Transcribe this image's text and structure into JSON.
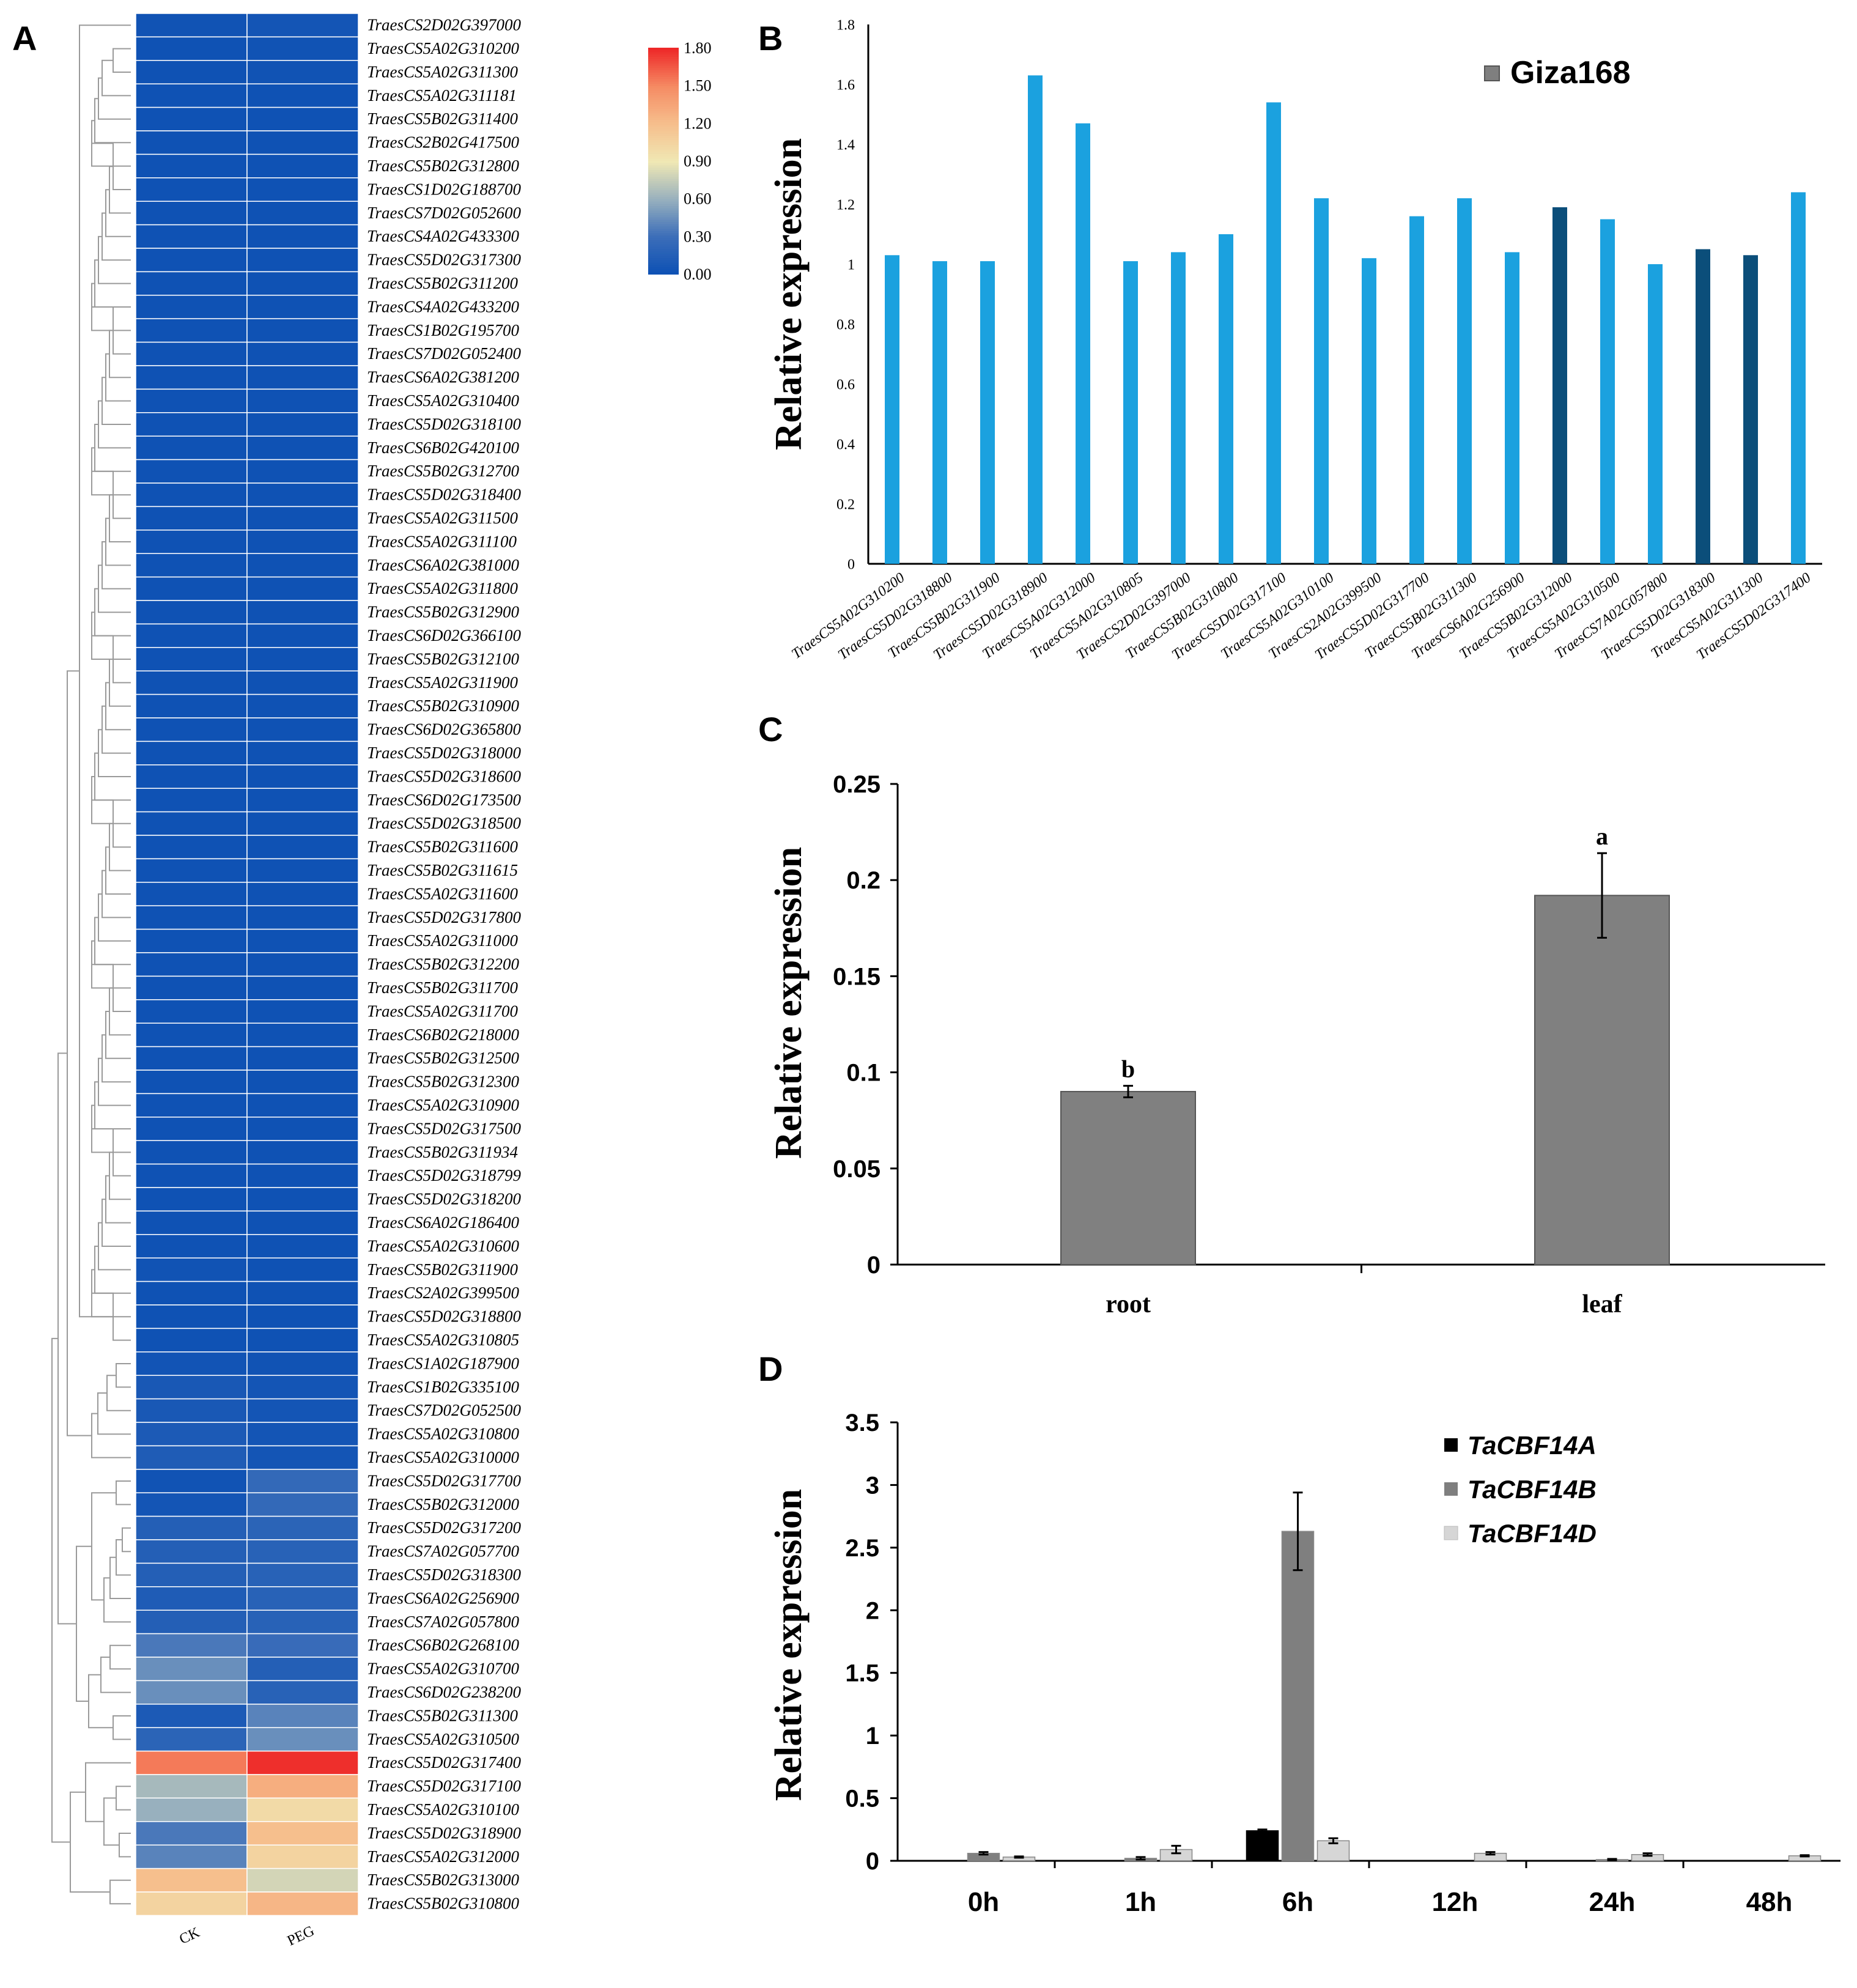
{
  "panels": {
    "a": {
      "letter": "A"
    },
    "b": {
      "letter": "B"
    },
    "c": {
      "letter": "C"
    },
    "d": {
      "letter": "D"
    }
  },
  "colors": {
    "axis": "#000000",
    "b_light": "#1ba1df",
    "b_dark": "#0b4e7a",
    "b_legend": "#7f7f7f",
    "c_bar": "#808080",
    "d_a": "#000000",
    "d_b": "#7f7f7f",
    "d_d": "#d6d6d6"
  },
  "chart_data": [
    {
      "panel": "A",
      "type": "heatmap",
      "columns": [
        "CK",
        "PEG"
      ],
      "colorbar": {
        "min": 0.0,
        "max": 1.8,
        "ticks": [
          "0.00",
          "0.30",
          "0.60",
          "0.90",
          "1.20",
          "1.50",
          "1.80"
        ]
      },
      "rows": [
        {
          "gene": "TraesCS2D02G397000",
          "values": [
            0.03,
            0.05
          ]
        },
        {
          "gene": "TraesCS5A02G310200",
          "values": [
            0.02,
            0.03
          ]
        },
        {
          "gene": "TraesCS5A02G311300",
          "values": [
            0.02,
            0.03
          ]
        },
        {
          "gene": "TraesCS5A02G311181",
          "values": [
            0.02,
            0.02
          ]
        },
        {
          "gene": "TraesCS5B02G311400",
          "values": [
            0.02,
            0.02
          ]
        },
        {
          "gene": "TraesCS2B02G417500",
          "values": [
            0.02,
            0.02
          ]
        },
        {
          "gene": "TraesCS5B02G312800",
          "values": [
            0.02,
            0.02
          ]
        },
        {
          "gene": "TraesCS1D02G188700",
          "values": [
            0.02,
            0.02
          ]
        },
        {
          "gene": "TraesCS7D02G052600",
          "values": [
            0.02,
            0.02
          ]
        },
        {
          "gene": "TraesCS4A02G433300",
          "values": [
            0.02,
            0.02
          ]
        },
        {
          "gene": "TraesCS5D02G317300",
          "values": [
            0.02,
            0.02
          ]
        },
        {
          "gene": "TraesCS5B02G311200",
          "values": [
            0.02,
            0.02
          ]
        },
        {
          "gene": "TraesCS4A02G433200",
          "values": [
            0.02,
            0.02
          ]
        },
        {
          "gene": "TraesCS1B02G195700",
          "values": [
            0.02,
            0.02
          ]
        },
        {
          "gene": "TraesCS7D02G052400",
          "values": [
            0.02,
            0.02
          ]
        },
        {
          "gene": "TraesCS6A02G381200",
          "values": [
            0.02,
            0.02
          ]
        },
        {
          "gene": "TraesCS5A02G310400",
          "values": [
            0.02,
            0.02
          ]
        },
        {
          "gene": "TraesCS5D02G318100",
          "values": [
            0.02,
            0.02
          ]
        },
        {
          "gene": "TraesCS6B02G420100",
          "values": [
            0.02,
            0.02
          ]
        },
        {
          "gene": "TraesCS5B02G312700",
          "values": [
            0.02,
            0.02
          ]
        },
        {
          "gene": "TraesCS5D02G318400",
          "values": [
            0.02,
            0.02
          ]
        },
        {
          "gene": "TraesCS5A02G311500",
          "values": [
            0.02,
            0.02
          ]
        },
        {
          "gene": "TraesCS5A02G311100",
          "values": [
            0.02,
            0.02
          ]
        },
        {
          "gene": "TraesCS6A02G381000",
          "values": [
            0.02,
            0.02
          ]
        },
        {
          "gene": "TraesCS5A02G311800",
          "values": [
            0.02,
            0.02
          ]
        },
        {
          "gene": "TraesCS5B02G312900",
          "values": [
            0.02,
            0.02
          ]
        },
        {
          "gene": "TraesCS6D02G366100",
          "values": [
            0.02,
            0.02
          ]
        },
        {
          "gene": "TraesCS5B02G312100",
          "values": [
            0.02,
            0.02
          ]
        },
        {
          "gene": "TraesCS5A02G311900",
          "values": [
            0.02,
            0.02
          ]
        },
        {
          "gene": "TraesCS5B02G310900",
          "values": [
            0.02,
            0.02
          ]
        },
        {
          "gene": "TraesCS6D02G365800",
          "values": [
            0.02,
            0.02
          ]
        },
        {
          "gene": "TraesCS5D02G318000",
          "values": [
            0.02,
            0.02
          ]
        },
        {
          "gene": "TraesCS5D02G318600",
          "values": [
            0.02,
            0.02
          ]
        },
        {
          "gene": "TraesCS6D02G173500",
          "values": [
            0.02,
            0.02
          ]
        },
        {
          "gene": "TraesCS5D02G318500",
          "values": [
            0.02,
            0.02
          ]
        },
        {
          "gene": "TraesCS5B02G311600",
          "values": [
            0.02,
            0.02
          ]
        },
        {
          "gene": "TraesCS5B02G311615",
          "values": [
            0.02,
            0.02
          ]
        },
        {
          "gene": "TraesCS5A02G311600",
          "values": [
            0.02,
            0.02
          ]
        },
        {
          "gene": "TraesCS5D02G317800",
          "values": [
            0.02,
            0.02
          ]
        },
        {
          "gene": "TraesCS5A02G311000",
          "values": [
            0.02,
            0.02
          ]
        },
        {
          "gene": "TraesCS5B02G312200",
          "values": [
            0.02,
            0.02
          ]
        },
        {
          "gene": "TraesCS5B02G311700",
          "values": [
            0.02,
            0.02
          ]
        },
        {
          "gene": "TraesCS5A02G311700",
          "values": [
            0.02,
            0.02
          ]
        },
        {
          "gene": "TraesCS6B02G218000",
          "values": [
            0.02,
            0.02
          ]
        },
        {
          "gene": "TraesCS5B02G312500",
          "values": [
            0.02,
            0.02
          ]
        },
        {
          "gene": "TraesCS5B02G312300",
          "values": [
            0.02,
            0.02
          ]
        },
        {
          "gene": "TraesCS5A02G310900",
          "values": [
            0.02,
            0.02
          ]
        },
        {
          "gene": "TraesCS5D02G317500",
          "values": [
            0.02,
            0.02
          ]
        },
        {
          "gene": "TraesCS5B02G311934",
          "values": [
            0.02,
            0.02
          ]
        },
        {
          "gene": "TraesCS5D02G318799",
          "values": [
            0.02,
            0.02
          ]
        },
        {
          "gene": "TraesCS5D02G318200",
          "values": [
            0.02,
            0.02
          ]
        },
        {
          "gene": "TraesCS6A02G186400",
          "values": [
            0.02,
            0.02
          ]
        },
        {
          "gene": "TraesCS5A02G310600",
          "values": [
            0.02,
            0.02
          ]
        },
        {
          "gene": "TraesCS5B02G311900",
          "values": [
            0.03,
            0.02
          ]
        },
        {
          "gene": "TraesCS2A02G399500",
          "values": [
            0.02,
            0.02
          ]
        },
        {
          "gene": "TraesCS5D02G318800",
          "values": [
            0.02,
            0.02
          ]
        },
        {
          "gene": "TraesCS5A02G310805",
          "values": [
            0.02,
            0.02
          ]
        },
        {
          "gene": "TraesCS1A02G187900",
          "values": [
            0.04,
            0.03
          ]
        },
        {
          "gene": "TraesCS1B02G335100",
          "values": [
            0.08,
            0.05
          ]
        },
        {
          "gene": "TraesCS7D02G052500",
          "values": [
            0.08,
            0.05
          ]
        },
        {
          "gene": "TraesCS5A02G310800",
          "values": [
            0.1,
            0.05
          ]
        },
        {
          "gene": "TraesCS5A02G310000",
          "values": [
            0.12,
            0.05
          ]
        },
        {
          "gene": "TraesCS5D02G317700",
          "values": [
            0.03,
            0.25
          ]
        },
        {
          "gene": "TraesCS5B02G312000",
          "values": [
            0.05,
            0.25
          ]
        },
        {
          "gene": "TraesCS5D02G317200",
          "values": [
            0.15,
            0.2
          ]
        },
        {
          "gene": "TraesCS7A02G057700",
          "values": [
            0.15,
            0.18
          ]
        },
        {
          "gene": "TraesCS5D02G318300",
          "values": [
            0.15,
            0.18
          ]
        },
        {
          "gene": "TraesCS6A02G256900",
          "values": [
            0.12,
            0.18
          ]
        },
        {
          "gene": "TraesCS7A02G057800",
          "values": [
            0.15,
            0.18
          ]
        },
        {
          "gene": "TraesCS6B02G268100",
          "values": [
            0.35,
            0.28
          ]
        },
        {
          "gene": "TraesCS5A02G310700",
          "values": [
            0.45,
            0.15
          ]
        },
        {
          "gene": "TraesCS6D02G238200",
          "values": [
            0.45,
            0.18
          ]
        },
        {
          "gene": "TraesCS5B02G311300",
          "values": [
            0.1,
            0.4
          ]
        },
        {
          "gene": "TraesCS5A02G310500",
          "values": [
            0.2,
            0.45
          ]
        },
        {
          "gene": "TraesCS5D02G317400",
          "values": [
            1.55,
            1.78
          ]
        },
        {
          "gene": "TraesCS5D02G317100",
          "values": [
            0.65,
            1.3
          ]
        },
        {
          "gene": "TraesCS5A02G310100",
          "values": [
            0.6,
            1.0
          ]
        },
        {
          "gene": "TraesCS5D02G318900",
          "values": [
            0.35,
            1.2
          ]
        },
        {
          "gene": "TraesCS5A02G312000",
          "values": [
            0.4,
            1.05
          ]
        },
        {
          "gene": "TraesCS5B02G313000",
          "values": [
            1.2,
            0.8
          ]
        },
        {
          "gene": "TraesCS5B02G310800",
          "values": [
            1.05,
            1.25
          ]
        }
      ]
    },
    {
      "panel": "B",
      "type": "bar",
      "title": "",
      "ylabel": "Relative expression",
      "ylim": [
        0,
        1.8
      ],
      "yticks": [
        "0",
        "0.2",
        "0.4",
        "0.6",
        "0.8",
        "1",
        "1.2",
        "1.4",
        "1.6",
        "1.8"
      ],
      "legend": "Giza168",
      "categories": [
        "TraesCS5A02G310200",
        "TraesCS5D02G318800",
        "TraesCS5B02G311900",
        "TraesCS5D02G318900",
        "TraesCS5A02G312000",
        "TraesCS5A02G310805",
        "TraesCS2D02G397000",
        "TraesCS5B02G310800",
        "TraesCS5D02G317100",
        "TraesCS5A02G310100",
        "TraesCS2A02G399500",
        "TraesCS5D02G317700",
        "TraesCS5B02G311300",
        "TraesCS6A02G256900",
        "TraesCS5B02G312000",
        "TraesCS5A02G310500",
        "TraesCS7A02G057800",
        "TraesCS5D02G318300",
        "TraesCS5A02G311300",
        "TraesCS5D02G317400"
      ],
      "values": [
        1.03,
        1.01,
        1.01,
        1.63,
        1.47,
        1.01,
        1.04,
        1.1,
        1.54,
        1.22,
        1.02,
        1.16,
        1.22,
        1.04,
        1.19,
        1.15,
        1.0,
        1.05,
        1.03,
        1.24
      ],
      "highlight": [
        false,
        false,
        false,
        false,
        false,
        false,
        false,
        false,
        false,
        false,
        false,
        false,
        false,
        false,
        true,
        false,
        false,
        true,
        true,
        false
      ]
    },
    {
      "panel": "C",
      "type": "bar",
      "ylabel": "Relative expression",
      "ylim": [
        0,
        0.25
      ],
      "yticks": [
        "0",
        "0.05",
        "0.1",
        "0.15",
        "0.2",
        "0.25"
      ],
      "categories": [
        "root",
        "leaf"
      ],
      "values": [
        0.09,
        0.192
      ],
      "errors": [
        0.003,
        0.022
      ],
      "letters": [
        "b",
        "a"
      ]
    },
    {
      "panel": "D",
      "type": "bar",
      "ylabel": "Relative expression",
      "ylim": [
        0,
        3.5
      ],
      "yticks": [
        "0",
        "0.5",
        "1",
        "1.5",
        "2",
        "2.5",
        "3",
        "3.5"
      ],
      "categories": [
        "0h",
        "1h",
        "6h",
        "12h",
        "24h",
        "48h"
      ],
      "series": [
        {
          "name": "TaCBF14A",
          "values": [
            0.0,
            0.0,
            0.24,
            0.0,
            0.0,
            0.0
          ],
          "errors": [
            0,
            0,
            0.01,
            0,
            0,
            0
          ]
        },
        {
          "name": "TaCBF14B",
          "values": [
            0.06,
            0.02,
            2.63,
            0.0,
            0.01,
            0.0
          ],
          "errors": [
            0.01,
            0.01,
            0.31,
            0,
            0.005,
            0
          ]
        },
        {
          "name": "TaCBF14D",
          "values": [
            0.03,
            0.09,
            0.16,
            0.06,
            0.05,
            0.04
          ],
          "errors": [
            0.005,
            0.03,
            0.02,
            0.01,
            0.01,
            0.005
          ]
        }
      ]
    }
  ]
}
